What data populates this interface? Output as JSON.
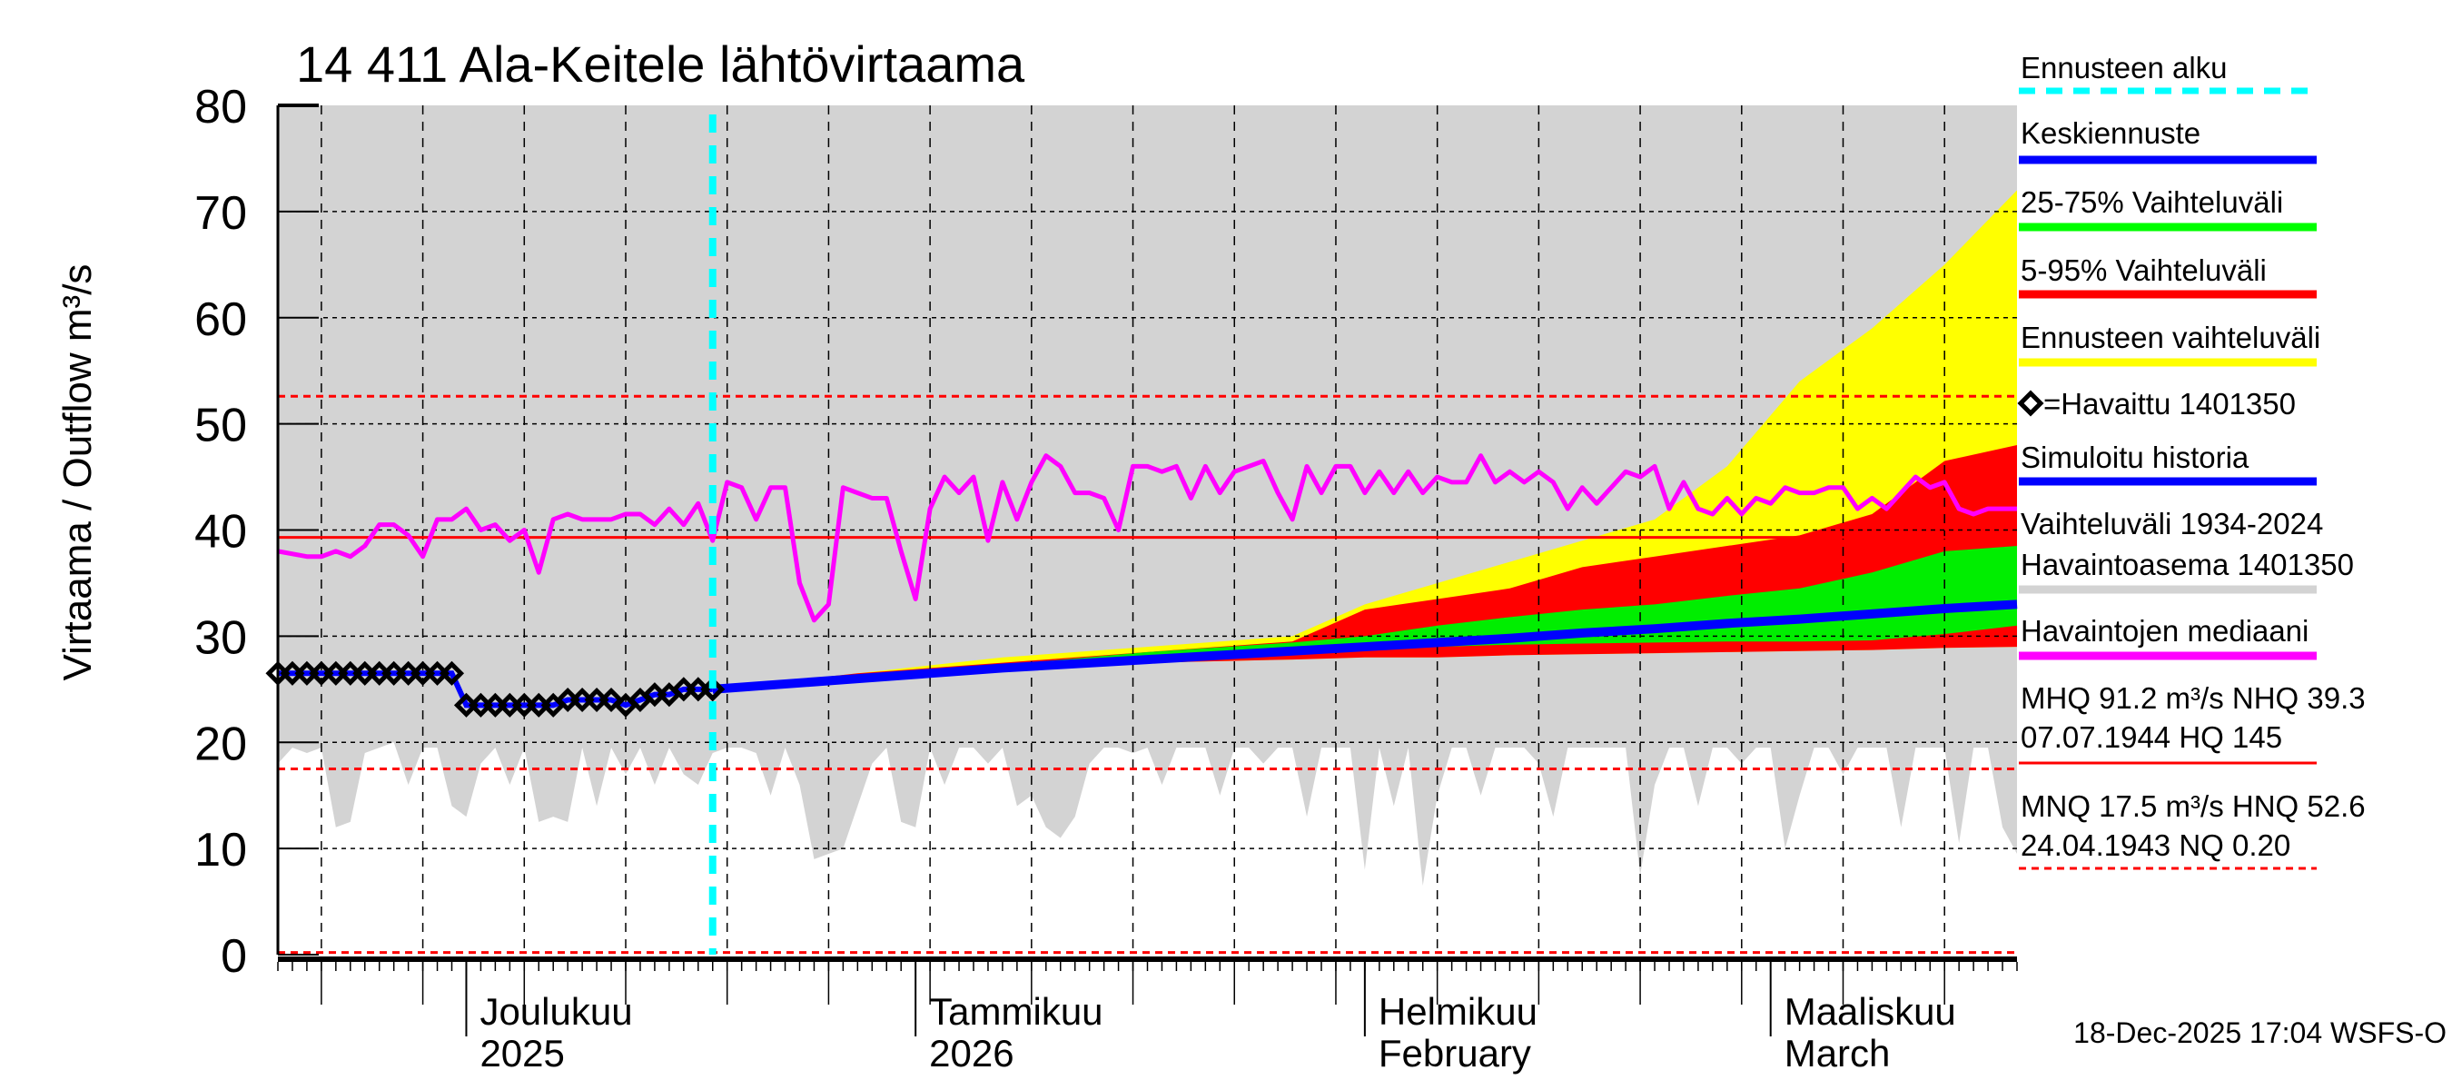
{
  "chart_data": {
    "type": "area",
    "title": "14 411 Ala-Keitele lähtövirtaama",
    "ylabel": "Virtaama / Outflow    m³/s",
    "ylim": [
      0,
      80
    ],
    "yticks": [
      "0",
      "10",
      "20",
      "30",
      "40",
      "50",
      "60",
      "70",
      "80"
    ],
    "x_start_date": "2025-11-18",
    "x_days": 120,
    "forecast_start_day": 30,
    "month_labels": [
      {
        "day": 13,
        "line1": "Joulukuu",
        "line2": "2025"
      },
      {
        "day": 44,
        "line1": "Tammikuu",
        "line2": "2026"
      },
      {
        "day": 75,
        "line1": "Helmikuu",
        "line2": "February"
      },
      {
        "day": 103,
        "line1": "Maaliskuu",
        "line2": "March"
      }
    ],
    "reference_lines": {
      "NHQ": 39.3,
      "HNQ": 52.6,
      "MNQ": 17.5,
      "NQ": 0.2
    },
    "history_range": {
      "upper": 80,
      "lower": [
        [
          0,
          18
        ],
        [
          1,
          19.5
        ],
        [
          2,
          19
        ],
        [
          3,
          19.5
        ],
        [
          4,
          12
        ],
        [
          5,
          12.5
        ],
        [
          6,
          19
        ],
        [
          7,
          19.5
        ],
        [
          8,
          20
        ],
        [
          9,
          16
        ],
        [
          10,
          19.5
        ],
        [
          11,
          19.5
        ],
        [
          12,
          14
        ],
        [
          13,
          13
        ],
        [
          14,
          18
        ],
        [
          15,
          19.5
        ],
        [
          16,
          16
        ],
        [
          17,
          19.5
        ],
        [
          18,
          12.5
        ],
        [
          19,
          13
        ],
        [
          20,
          12.5
        ],
        [
          21,
          19.5
        ],
        [
          22,
          14
        ],
        [
          23,
          19.5
        ],
        [
          24,
          17
        ],
        [
          25,
          19.5
        ],
        [
          26,
          16
        ],
        [
          27,
          19.5
        ],
        [
          28,
          17
        ],
        [
          29,
          16
        ],
        [
          30,
          19
        ],
        [
          31,
          19.5
        ],
        [
          32,
          19.5
        ],
        [
          33,
          19
        ],
        [
          34,
          15
        ],
        [
          35,
          19.5
        ],
        [
          36,
          16
        ],
        [
          37,
          9
        ],
        [
          38,
          9.5
        ],
        [
          39,
          10
        ],
        [
          40,
          14
        ],
        [
          41,
          18
        ],
        [
          42,
          19.5
        ],
        [
          43,
          12.5
        ],
        [
          44,
          12
        ],
        [
          45,
          19.5
        ],
        [
          46,
          16
        ],
        [
          47,
          19.5
        ],
        [
          48,
          19.5
        ],
        [
          49,
          18
        ],
        [
          50,
          19.5
        ],
        [
          51,
          14
        ],
        [
          52,
          15
        ],
        [
          53,
          12
        ],
        [
          54,
          11
        ],
        [
          55,
          13
        ],
        [
          56,
          18
        ],
        [
          57,
          19.5
        ],
        [
          58,
          19.5
        ],
        [
          59,
          19
        ],
        [
          60,
          19.5
        ],
        [
          61,
          16
        ],
        [
          62,
          19.5
        ],
        [
          63,
          19.5
        ],
        [
          64,
          19.5
        ],
        [
          65,
          15
        ],
        [
          66,
          19.5
        ],
        [
          67,
          19.5
        ],
        [
          68,
          18
        ],
        [
          69,
          19.5
        ],
        [
          70,
          19.5
        ],
        [
          71,
          13
        ],
        [
          72,
          19.5
        ],
        [
          73,
          19.5
        ],
        [
          74,
          19.5
        ],
        [
          75,
          8
        ],
        [
          76,
          19.5
        ],
        [
          77,
          14
        ],
        [
          78,
          19.5
        ],
        [
          79,
          6.5
        ],
        [
          80,
          15
        ],
        [
          81,
          19.5
        ],
        [
          82,
          19.5
        ],
        [
          83,
          15
        ],
        [
          84,
          19.5
        ],
        [
          85,
          19.5
        ],
        [
          86,
          19.5
        ],
        [
          87,
          18
        ],
        [
          88,
          13
        ],
        [
          89,
          19.5
        ],
        [
          90,
          19.5
        ],
        [
          91,
          19.5
        ],
        [
          92,
          19.5
        ],
        [
          93,
          19.5
        ],
        [
          94,
          7.5
        ],
        [
          95,
          16
        ],
        [
          96,
          19.5
        ],
        [
          97,
          19.5
        ],
        [
          98,
          14
        ],
        [
          99,
          19.5
        ],
        [
          100,
          19.5
        ],
        [
          101,
          18
        ],
        [
          102,
          19.5
        ],
        [
          103,
          19.5
        ],
        [
          104,
          10
        ],
        [
          105,
          15
        ],
        [
          106,
          19.5
        ],
        [
          107,
          19.5
        ],
        [
          108,
          17
        ],
        [
          109,
          19.5
        ],
        [
          110,
          19.5
        ],
        [
          111,
          19.5
        ],
        [
          112,
          12
        ],
        [
          113,
          19.5
        ],
        [
          114,
          19.5
        ],
        [
          115,
          19.5
        ],
        [
          116,
          10.5
        ],
        [
          117,
          19.5
        ],
        [
          118,
          19.5
        ],
        [
          119,
          12
        ],
        [
          120,
          9.5
        ]
      ]
    },
    "forecast_days": [
      30,
      40,
      50,
      60,
      70,
      75,
      80,
      85,
      90,
      95,
      100,
      105,
      110,
      115,
      120
    ],
    "series": [
      {
        "name": "Ennusteen vaihteluväli",
        "kind": "band",
        "color": "#ffff00",
        "lower": [
          25,
          26,
          27,
          27.5,
          27.8,
          28,
          28,
          28.2,
          28.3,
          28.4,
          28.5,
          28.6,
          28.7,
          28.9,
          29
        ],
        "upper": [
          25,
          26.5,
          28,
          29,
          30,
          33,
          35,
          37,
          39,
          41,
          46,
          54,
          59,
          65,
          72
        ]
      },
      {
        "name": "5-95% Vaihteluväli",
        "kind": "band",
        "color": "#ff0000",
        "lower": [
          25,
          26,
          27,
          27.5,
          27.8,
          28,
          28,
          28.2,
          28.3,
          28.4,
          28.5,
          28.6,
          28.7,
          28.9,
          29
        ],
        "upper": [
          25,
          26.5,
          27.5,
          28.5,
          29.5,
          32.5,
          33.5,
          34.5,
          36.5,
          37.5,
          38.5,
          39.5,
          41.5,
          46.5,
          48
        ]
      },
      {
        "name": "25-75% Vaihteluväli",
        "kind": "band",
        "color": "#00ee00",
        "lower": [
          25,
          26,
          27,
          28,
          28.4,
          28.7,
          29,
          29.2,
          29.3,
          29.4,
          29.5,
          29.5,
          29.6,
          30.2,
          31
        ],
        "upper": [
          25,
          26.2,
          27.3,
          28.5,
          29.4,
          30,
          31,
          31.8,
          32.5,
          33,
          33.8,
          34.5,
          36,
          38,
          38.5
        ]
      },
      {
        "name": "Keskiennuste",
        "kind": "line",
        "color": "#0000ff",
        "values": [
          25,
          26,
          27,
          27.8,
          28.6,
          29,
          29.4,
          29.8,
          30.3,
          30.7,
          31.2,
          31.6,
          32.1,
          32.6,
          33
        ]
      },
      {
        "name": "Havaintojen mediaani",
        "kind": "line",
        "color": "#ff00ff",
        "points": [
          [
            0,
            38
          ],
          [
            2,
            37.5
          ],
          [
            3,
            37.5
          ],
          [
            4,
            38
          ],
          [
            5,
            37.5
          ],
          [
            6,
            38.5
          ],
          [
            7,
            40.5
          ],
          [
            8,
            40.5
          ],
          [
            9,
            39.5
          ],
          [
            10,
            37.5
          ],
          [
            11,
            41
          ],
          [
            12,
            41
          ],
          [
            13,
            42
          ],
          [
            14,
            40
          ],
          [
            15,
            40.5
          ],
          [
            16,
            39
          ],
          [
            17,
            40
          ],
          [
            18,
            36
          ],
          [
            19,
            41
          ],
          [
            20,
            41.5
          ],
          [
            21,
            41
          ],
          [
            23,
            41
          ],
          [
            24,
            41.5
          ],
          [
            25,
            41.5
          ],
          [
            26,
            40.5
          ],
          [
            27,
            42
          ],
          [
            28,
            40.5
          ],
          [
            29,
            42.5
          ],
          [
            30,
            39
          ],
          [
            31,
            44.5
          ],
          [
            32,
            44
          ],
          [
            33,
            41
          ],
          [
            34,
            44
          ],
          [
            35,
            44
          ],
          [
            36,
            35
          ],
          [
            37,
            31.5
          ],
          [
            38,
            33
          ],
          [
            39,
            44
          ],
          [
            40,
            43.5
          ],
          [
            41,
            43
          ],
          [
            42,
            43
          ],
          [
            43,
            38
          ],
          [
            44,
            33.5
          ],
          [
            45,
            42
          ],
          [
            46,
            45
          ],
          [
            47,
            43.5
          ],
          [
            48,
            45
          ],
          [
            49,
            39
          ],
          [
            50,
            44.5
          ],
          [
            51,
            41
          ],
          [
            52,
            44.5
          ],
          [
            53,
            47
          ],
          [
            54,
            46
          ],
          [
            55,
            43.5
          ],
          [
            56,
            43.5
          ],
          [
            57,
            43
          ],
          [
            58,
            40
          ],
          [
            59,
            46
          ],
          [
            60,
            46
          ],
          [
            61,
            45.5
          ],
          [
            62,
            46
          ],
          [
            63,
            43
          ],
          [
            64,
            46
          ],
          [
            65,
            43.5
          ],
          [
            66,
            45.5
          ],
          [
            67,
            46
          ],
          [
            68,
            46.5
          ],
          [
            69,
            43.5
          ],
          [
            70,
            41
          ],
          [
            71,
            46
          ],
          [
            72,
            43.5
          ],
          [
            73,
            46
          ],
          [
            74,
            46
          ],
          [
            75,
            43.5
          ],
          [
            76,
            45.5
          ],
          [
            77,
            43.5
          ],
          [
            78,
            45.5
          ],
          [
            79,
            43.5
          ],
          [
            80,
            45
          ],
          [
            81,
            44.5
          ],
          [
            82,
            44.5
          ],
          [
            83,
            47
          ],
          [
            84,
            44.5
          ],
          [
            85,
            45.5
          ],
          [
            86,
            44.5
          ],
          [
            87,
            45.5
          ],
          [
            88,
            44.5
          ],
          [
            89,
            42
          ],
          [
            90,
            44
          ],
          [
            91,
            42.5
          ],
          [
            92,
            44
          ],
          [
            93,
            45.5
          ],
          [
            94,
            45
          ],
          [
            95,
            46
          ],
          [
            96,
            42
          ],
          [
            97,
            44.5
          ],
          [
            98,
            42
          ],
          [
            99,
            41.5
          ],
          [
            100,
            43
          ],
          [
            101,
            41.5
          ],
          [
            102,
            43
          ],
          [
            103,
            42.5
          ],
          [
            104,
            44
          ],
          [
            105,
            43.5
          ],
          [
            106,
            43.5
          ],
          [
            107,
            44
          ],
          [
            108,
            44
          ],
          [
            109,
            42
          ],
          [
            110,
            43
          ],
          [
            111,
            42
          ],
          [
            112,
            43.5
          ],
          [
            113,
            45
          ],
          [
            114,
            44
          ],
          [
            115,
            44.5
          ],
          [
            116,
            42
          ],
          [
            117,
            41.5
          ],
          [
            118,
            42
          ],
          [
            120,
            42
          ]
        ]
      },
      {
        "name": "Havaittu 1401350",
        "kind": "markers",
        "color": "#000000",
        "points": [
          [
            0,
            26.5
          ],
          [
            1,
            26.5
          ],
          [
            2,
            26.5
          ],
          [
            3,
            26.5
          ],
          [
            4,
            26.5
          ],
          [
            5,
            26.5
          ],
          [
            6,
            26.5
          ],
          [
            7,
            26.5
          ],
          [
            8,
            26.5
          ],
          [
            9,
            26.5
          ],
          [
            10,
            26.5
          ],
          [
            11,
            26.5
          ],
          [
            12,
            26.5
          ],
          [
            13,
            23.5
          ],
          [
            14,
            23.5
          ],
          [
            15,
            23.5
          ],
          [
            16,
            23.5
          ],
          [
            17,
            23.5
          ],
          [
            18,
            23.5
          ],
          [
            19,
            23.5
          ],
          [
            20,
            24
          ],
          [
            21,
            24
          ],
          [
            22,
            24
          ],
          [
            23,
            24
          ],
          [
            24,
            23.5
          ],
          [
            25,
            24
          ],
          [
            26,
            24.5
          ],
          [
            27,
            24.5
          ],
          [
            28,
            25
          ],
          [
            29,
            25
          ],
          [
            30,
            25
          ]
        ]
      }
    ],
    "legend": [
      {
        "label": "Ennusteen alku",
        "color": "#00ffff",
        "style": "dashed"
      },
      {
        "label": "Keskiennuste",
        "color": "#0000ff",
        "style": "solid"
      },
      {
        "label": "25-75% Vaihteluväli",
        "color": "#00ff00",
        "style": "solid"
      },
      {
        "label": "5-95% Vaihteluväli",
        "color": "#ff0000",
        "style": "solid"
      },
      {
        "label": "Ennusteen vaihteluväli",
        "color": "#ffff00",
        "style": "solid"
      },
      {
        "label": "=Havaittu 1401350",
        "color": "#000000",
        "style": "marker"
      },
      {
        "label": "Simuloitu historia",
        "color": "#0000ff",
        "style": "solid"
      },
      {
        "label": "Vaihteluväli 1934-2024",
        "label2": "Havaintoasema 1401350",
        "color": "#d3d3d3",
        "style": "solid"
      },
      {
        "label": "Havaintojen mediaani",
        "color": "#ff00ff",
        "style": "solid"
      },
      {
        "label": "MHQ 91.2 m³/s NHQ 39.3",
        "label2": "07.07.1944 HQ  145",
        "color": "#ff0000",
        "style": "thin"
      },
      {
        "label": "MNQ 17.5 m³/s HNQ 52.6",
        "label2": "24.04.1943 NQ 0.20",
        "color": "#ff0000",
        "style": "thin-dashed"
      }
    ],
    "timestamp": "18-Dec-2025 17:04 WSFS-O"
  }
}
